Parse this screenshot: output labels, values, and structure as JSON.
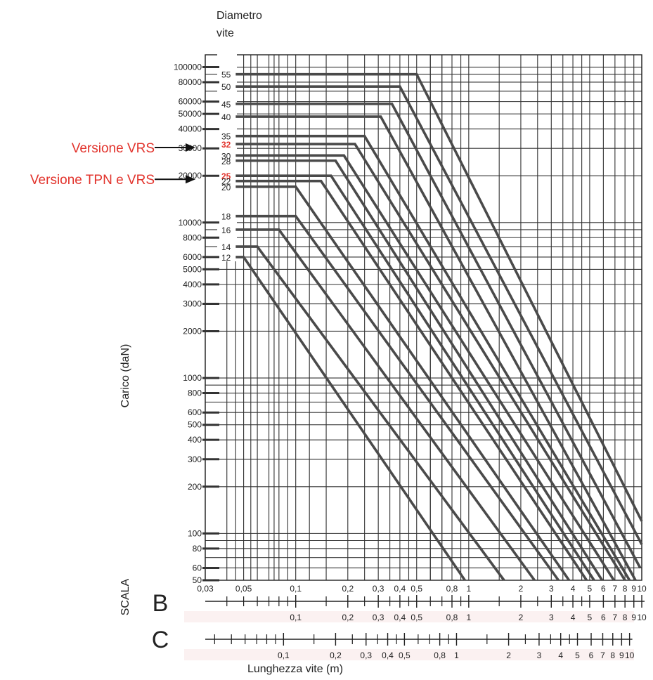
{
  "chart_data": {
    "type": "line",
    "title": "",
    "header_label": [
      "Diametro",
      "vite"
    ],
    "ylabel": "Carico (daN)",
    "xlabel": "Lunghezza vite (m)",
    "y_scale": "log",
    "x_scale": "log",
    "ylim": [
      50,
      120000
    ],
    "xlim": [
      0.03,
      10
    ],
    "y_tick_labels": [
      "100000",
      "80000",
      "60000",
      "50000",
      "40000",
      "30000",
      "20000",
      "10000",
      "8000",
      "6000",
      "5000",
      "4000",
      "3000",
      "2000",
      "1000",
      "800",
      "600",
      "500",
      "400",
      "300",
      "200",
      "100",
      "80",
      "60",
      "50"
    ],
    "x_tick_labels": [
      "0,03",
      "0,05",
      "0,1",
      "0,2",
      "0,3",
      "0,4",
      "0,5",
      "0,8",
      "1",
      "2",
      "3",
      "4",
      "5",
      "6",
      "7",
      "8",
      "9",
      "10"
    ],
    "scala_label": "SCALA",
    "scale_b": {
      "letter": "B",
      "labels": [
        "0,1",
        "0,2",
        "0,3",
        "0,4",
        "0,5",
        "0,8",
        "1",
        "2",
        "3",
        "4",
        "5",
        "6",
        "7",
        "8",
        "9",
        "10"
      ]
    },
    "scale_c": {
      "letter": "C",
      "labels": [
        "0,1",
        "0,2",
        "0,3",
        "0,4",
        "0,5",
        "0,8",
        "1",
        "2",
        "3",
        "4",
        "5",
        "6",
        "7",
        "8",
        "9",
        "10"
      ]
    },
    "callouts": [
      {
        "text": "Versione VRS",
        "target": "32"
      },
      {
        "text": "Versione TPN e VRS",
        "target": "25"
      }
    ],
    "highlight_color": "#e2332c",
    "line_color": "#4a4a4a",
    "series": [
      {
        "name": "55",
        "load": 90000,
        "plateau_end": 0.5,
        "end_x": 10,
        "end_y": 120
      },
      {
        "name": "50",
        "load": 75000,
        "plateau_end": 0.4,
        "end_x": 10,
        "end_y": 85
      },
      {
        "name": "45",
        "load": 58000,
        "plateau_end": 0.36,
        "end_x": 9.8,
        "end_y": 60
      },
      {
        "name": "40",
        "load": 48000,
        "plateau_end": 0.31,
        "end_x": 9.2,
        "end_y": 50
      },
      {
        "name": "35",
        "load": 36000,
        "plateau_end": 0.25,
        "end_x": 8.5,
        "end_y": 50
      },
      {
        "name": "32",
        "load": 32000,
        "plateau_end": 0.22,
        "end_x": 8.0,
        "end_y": 50
      },
      {
        "name": "30",
        "load": 27000,
        "plateau_end": 0.19,
        "end_x": 6.9,
        "end_y": 50
      },
      {
        "name": "28",
        "load": 25000,
        "plateau_end": 0.17,
        "end_x": 5.9,
        "end_y": 50
      },
      {
        "name": "25",
        "load": 20000,
        "plateau_end": 0.16,
        "end_x": 5.3,
        "end_y": 50
      },
      {
        "name": "22",
        "load": 18500,
        "plateau_end": 0.14,
        "end_x": 4.8,
        "end_y": 50
      },
      {
        "name": "20",
        "load": 17000,
        "plateau_end": 0.1,
        "end_x": 3.8,
        "end_y": 50
      },
      {
        "name": "18",
        "load": 11000,
        "plateau_end": 0.1,
        "end_x": 3.3,
        "end_y": 50
      },
      {
        "name": "16",
        "load": 9000,
        "plateau_end": 0.08,
        "end_x": 2.4,
        "end_y": 50
      },
      {
        "name": "14",
        "load": 7000,
        "plateau_end": 0.06,
        "end_x": 1.6,
        "end_y": 50
      },
      {
        "name": "12",
        "load": 6000,
        "plateau_end": 0.05,
        "end_x": 0.95,
        "end_y": 50
      }
    ]
  }
}
